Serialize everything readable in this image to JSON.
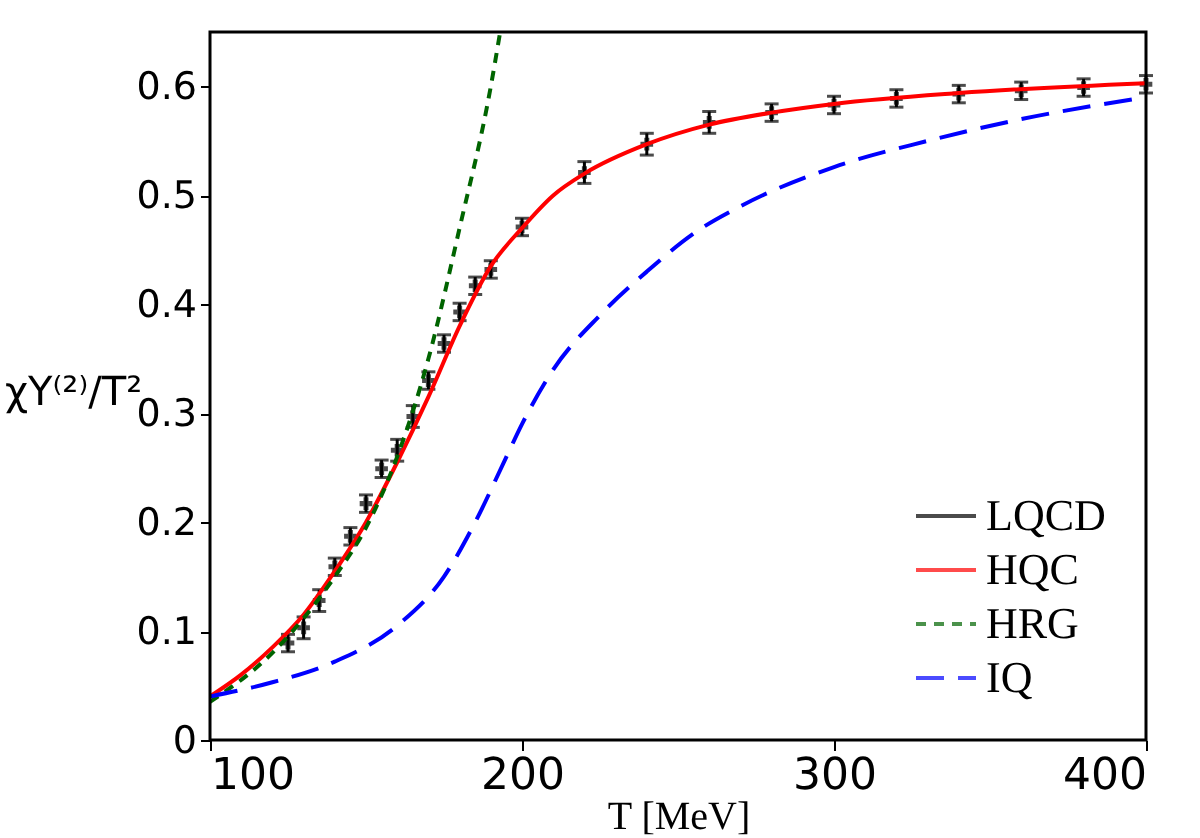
{
  "chart_data": {
    "type": "line",
    "xlabel": "T [MeV]",
    "ylabel": "χY⁽²⁾/T²",
    "xlim": [
      100,
      400
    ],
    "ylim": [
      0,
      0.65
    ],
    "xticks": [
      100,
      200,
      300,
      400
    ],
    "yticks": [
      {
        "value": 0,
        "label": "0"
      },
      0.1,
      0.2,
      0.3,
      0.4,
      0.5,
      0.6
    ],
    "grid": false,
    "legend": "bottom right",
    "series": [
      {
        "name": "LQCD",
        "type": "scatter",
        "marker": "cross",
        "color": "#000000",
        "x": [
          125,
          130,
          135,
          140,
          145,
          150,
          155,
          160,
          165,
          170,
          175,
          180,
          185,
          190,
          200,
          220,
          240,
          260,
          280,
          300,
          320,
          340,
          360,
          380,
          400
        ],
        "values": [
          0.089,
          0.103,
          0.128,
          0.159,
          0.187,
          0.217,
          0.249,
          0.266,
          0.297,
          0.33,
          0.364,
          0.393,
          0.417,
          0.432,
          0.471,
          0.521,
          0.547,
          0.567,
          0.576,
          0.583,
          0.589,
          0.593,
          0.596,
          0.599,
          0.602
        ],
        "errors": [
          0.008,
          0.01,
          0.01,
          0.008,
          0.008,
          0.008,
          0.008,
          0.01,
          0.01,
          0.008,
          0.008,
          0.008,
          0.008,
          0.008,
          0.008,
          0.01,
          0.01,
          0.01,
          0.008,
          0.008,
          0.008,
          0.008,
          0.008,
          0.008,
          0.008
        ]
      },
      {
        "name": "HQC",
        "type": "line",
        "line_style": "solid",
        "color": "#ff0000",
        "x": [
          100,
          110,
          120,
          130,
          140,
          150,
          160,
          170,
          180,
          190,
          200,
          210,
          220,
          240,
          260,
          280,
          300,
          340,
          400
        ],
        "values": [
          0.04,
          0.06,
          0.085,
          0.115,
          0.155,
          0.2,
          0.255,
          0.315,
          0.38,
          0.435,
          0.47,
          0.5,
          0.52,
          0.547,
          0.565,
          0.576,
          0.584,
          0.594,
          0.603
        ]
      },
      {
        "name": "HRG",
        "type": "line",
        "line_style": "dotted",
        "color": "#006400",
        "x": [
          100,
          120,
          140,
          150,
          160,
          170,
          180,
          190,
          193
        ],
        "values": [
          0.035,
          0.08,
          0.15,
          0.195,
          0.26,
          0.35,
          0.47,
          0.6,
          0.65
        ]
      },
      {
        "name": "IQ",
        "type": "line",
        "line_style": "dashed",
        "color": "#0000ff",
        "x": [
          100,
          120,
          140,
          160,
          175,
          185,
          195,
          200,
          210,
          225,
          240,
          255,
          270,
          300,
          330,
          360,
          400
        ],
        "values": [
          0.04,
          0.053,
          0.072,
          0.105,
          0.15,
          0.2,
          0.26,
          0.29,
          0.34,
          0.39,
          0.43,
          0.465,
          0.49,
          0.526,
          0.55,
          0.57,
          0.59
        ]
      }
    ]
  }
}
